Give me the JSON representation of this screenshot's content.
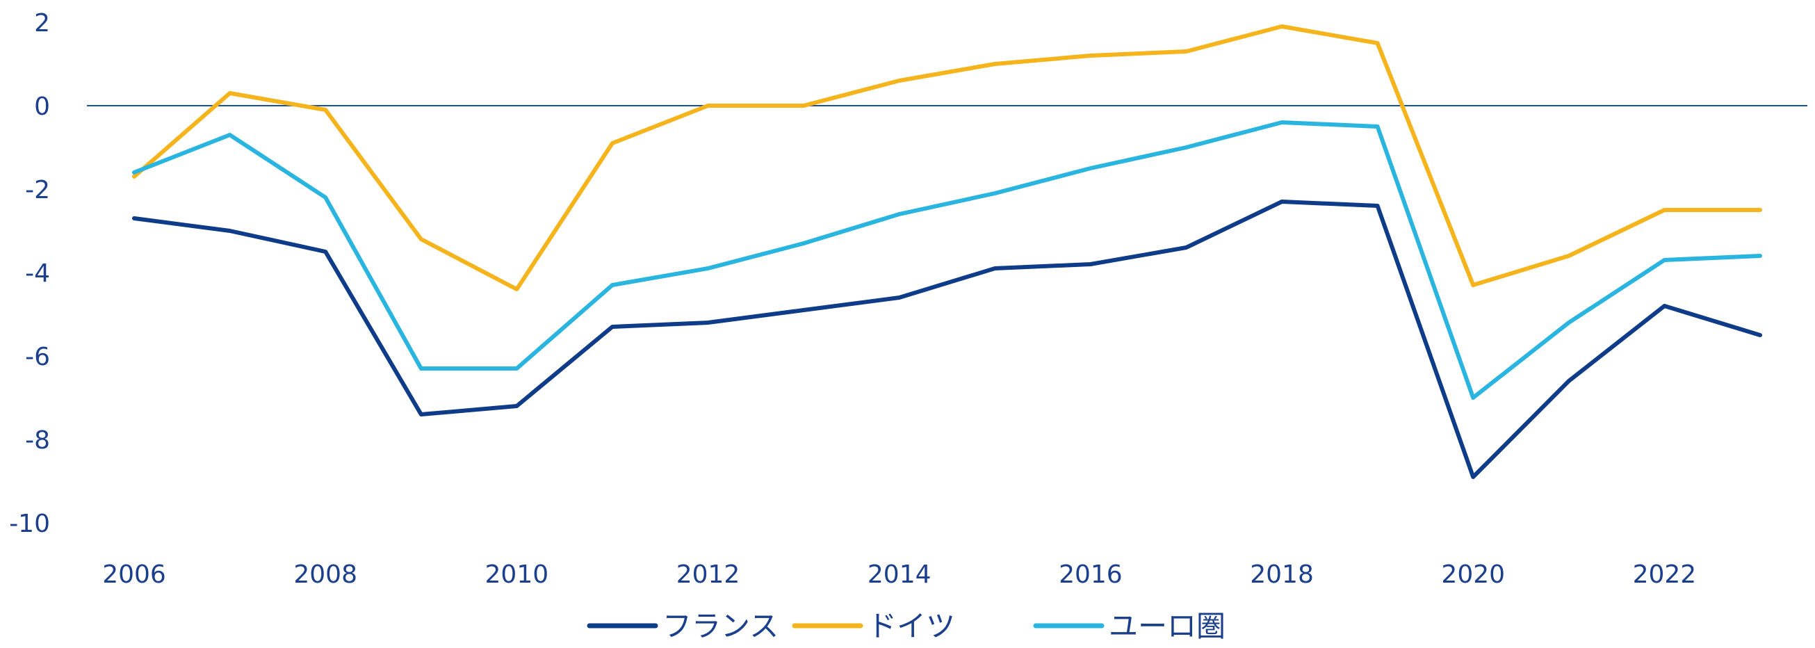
{
  "chart_data": {
    "type": "line",
    "title": "",
    "xlabel": "",
    "ylabel": "",
    "x": [
      2006,
      2007,
      2008,
      2009,
      2010,
      2011,
      2012,
      2013,
      2014,
      2015,
      2016,
      2017,
      2018,
      2019,
      2020,
      2021,
      2022,
      2023
    ],
    "x_ticks": [
      "2006",
      "2008",
      "2010",
      "2012",
      "2014",
      "2016",
      "2018",
      "2020",
      "2022"
    ],
    "y_ticks": [
      "2",
      "0",
      "-2",
      "-4",
      "-6",
      "-8",
      "-10"
    ],
    "ylim": [
      -10,
      2
    ],
    "xlim": [
      2006,
      2023
    ],
    "grid": false,
    "zero_line": true,
    "legend_position": "bottom",
    "series": [
      {
        "name": "フランス",
        "color": "#0f3c88",
        "values": [
          -2.7,
          -3.0,
          -3.5,
          -7.4,
          -7.2,
          -5.3,
          -5.2,
          -4.9,
          -4.6,
          -3.9,
          -3.8,
          -3.4,
          -2.3,
          -2.4,
          -8.9,
          -6.6,
          -4.8,
          -5.5
        ]
      },
      {
        "name": "ドイツ",
        "color": "#f5b41c",
        "values": [
          -1.7,
          0.3,
          -0.1,
          -3.2,
          -4.4,
          -0.9,
          0.0,
          0.0,
          0.6,
          1.0,
          1.2,
          1.3,
          1.9,
          1.5,
          -4.3,
          -3.6,
          -2.5,
          -2.5
        ]
      },
      {
        "name": "ユーロ圏",
        "color": "#2ab4e0",
        "values": [
          -1.6,
          -0.7,
          -2.2,
          -6.3,
          -6.3,
          -4.3,
          -3.9,
          -3.3,
          -2.6,
          -2.1,
          -1.5,
          -1.0,
          -0.4,
          -0.5,
          -7.0,
          -5.2,
          -3.7,
          -3.6
        ]
      }
    ]
  }
}
